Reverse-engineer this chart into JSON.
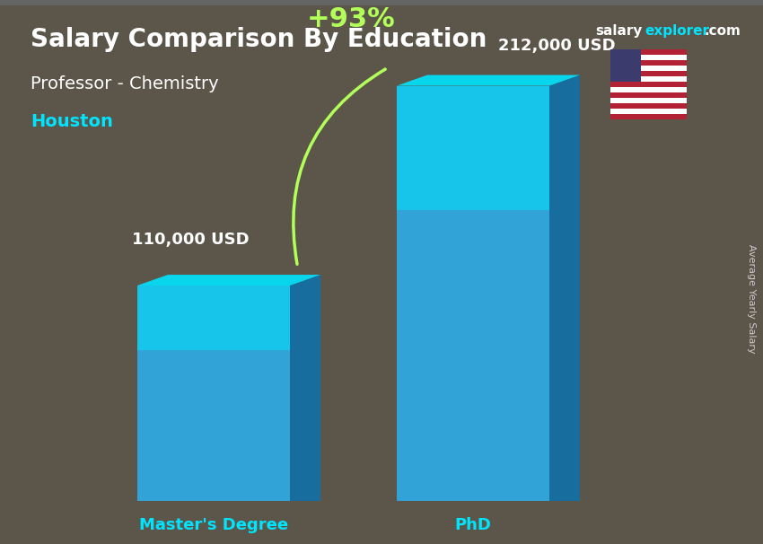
{
  "title_main": "Salary Comparison By Education",
  "subtitle1": "Professor - Chemistry",
  "subtitle2": "Houston",
  "watermark": "salaryexplorer.com",
  "side_label": "Average Yearly Salary",
  "categories": [
    "Master's Degree",
    "PhD"
  ],
  "values": [
    110000,
    212000
  ],
  "value_labels": [
    "110,000 USD",
    "212,000 USD"
  ],
  "pct_change": "+93%",
  "bar_color_top": "#00e5ff",
  "bar_color_mid": "#00bcd4",
  "bar_color_bottom": "#0097a7",
  "bar_color_face": "#29b6f6",
  "bar_color_side": "#0288d1",
  "bg_color": "#00000000",
  "title_color": "#ffffff",
  "subtitle1_color": "#ffffff",
  "subtitle2_color": "#00e5ff",
  "watermark_salary_color": "#ffffff",
  "watermark_explorer_color": "#00e5ff",
  "pct_color": "#b2ff59",
  "arrow_color": "#b2ff59",
  "xlabel_color": "#00e5ff",
  "value_label_color": "#ffffff",
  "bar_width": 0.35,
  "figsize": [
    8.5,
    6.06
  ],
  "dpi": 100
}
